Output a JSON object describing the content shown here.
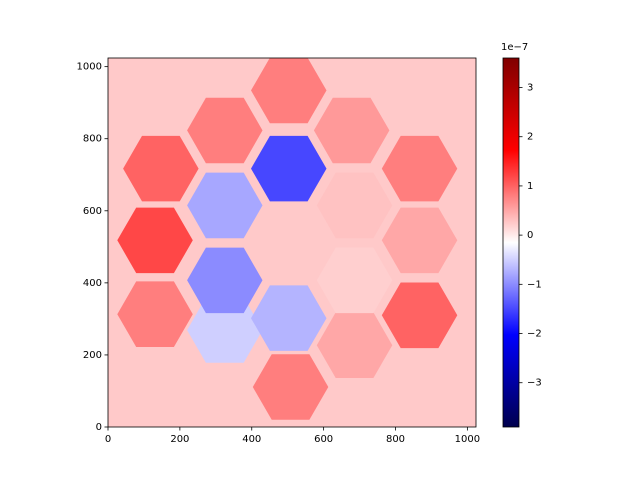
{
  "chart_data": {
    "type": "heatmap",
    "colormap": "seismic",
    "xlim": [
      0,
      1024
    ],
    "ylim": [
      0,
      1024
    ],
    "xticks": [
      0,
      200,
      400,
      600,
      800,
      1000
    ],
    "yticks": [
      0,
      200,
      400,
      600,
      800,
      1000
    ],
    "background_value": 0.25,
    "segments": [
      {
        "x": 147,
        "y": 717,
        "value": 1.0
      },
      {
        "x": 131,
        "y": 518,
        "value": 1.2
      },
      {
        "x": 131,
        "y": 313,
        "value": 0.8
      },
      {
        "x": 325,
        "y": 823,
        "value": 0.8
      },
      {
        "x": 503,
        "y": 934,
        "value": 0.8
      },
      {
        "x": 678,
        "y": 823,
        "value": 0.6
      },
      {
        "x": 867,
        "y": 717,
        "value": 0.8
      },
      {
        "x": 867,
        "y": 518,
        "value": 0.5
      },
      {
        "x": 867,
        "y": 310,
        "value": 1.0
      },
      {
        "x": 686,
        "y": 227,
        "value": 0.5
      },
      {
        "x": 508,
        "y": 111,
        "value": 0.8
      },
      {
        "x": 325,
        "y": 269,
        "value": -0.5
      },
      {
        "x": 503,
        "y": 717,
        "value": -1.5
      },
      {
        "x": 686,
        "y": 615,
        "value": 0.3
      },
      {
        "x": 686,
        "y": 407,
        "value": 0.2
      },
      {
        "x": 503,
        "y": 302,
        "value": -0.7
      },
      {
        "x": 325,
        "y": 407,
        "value": -1.0
      },
      {
        "x": 325,
        "y": 615,
        "value": -0.8
      }
    ],
    "clim": [
      -3.9,
      3.6
    ],
    "cticks": [
      {
        "value": -3,
        "label": "−3"
      },
      {
        "value": -2,
        "label": "−2"
      },
      {
        "value": -1,
        "label": "−1"
      },
      0,
      1,
      2,
      3
    ],
    "offset_label": "1e−7"
  }
}
